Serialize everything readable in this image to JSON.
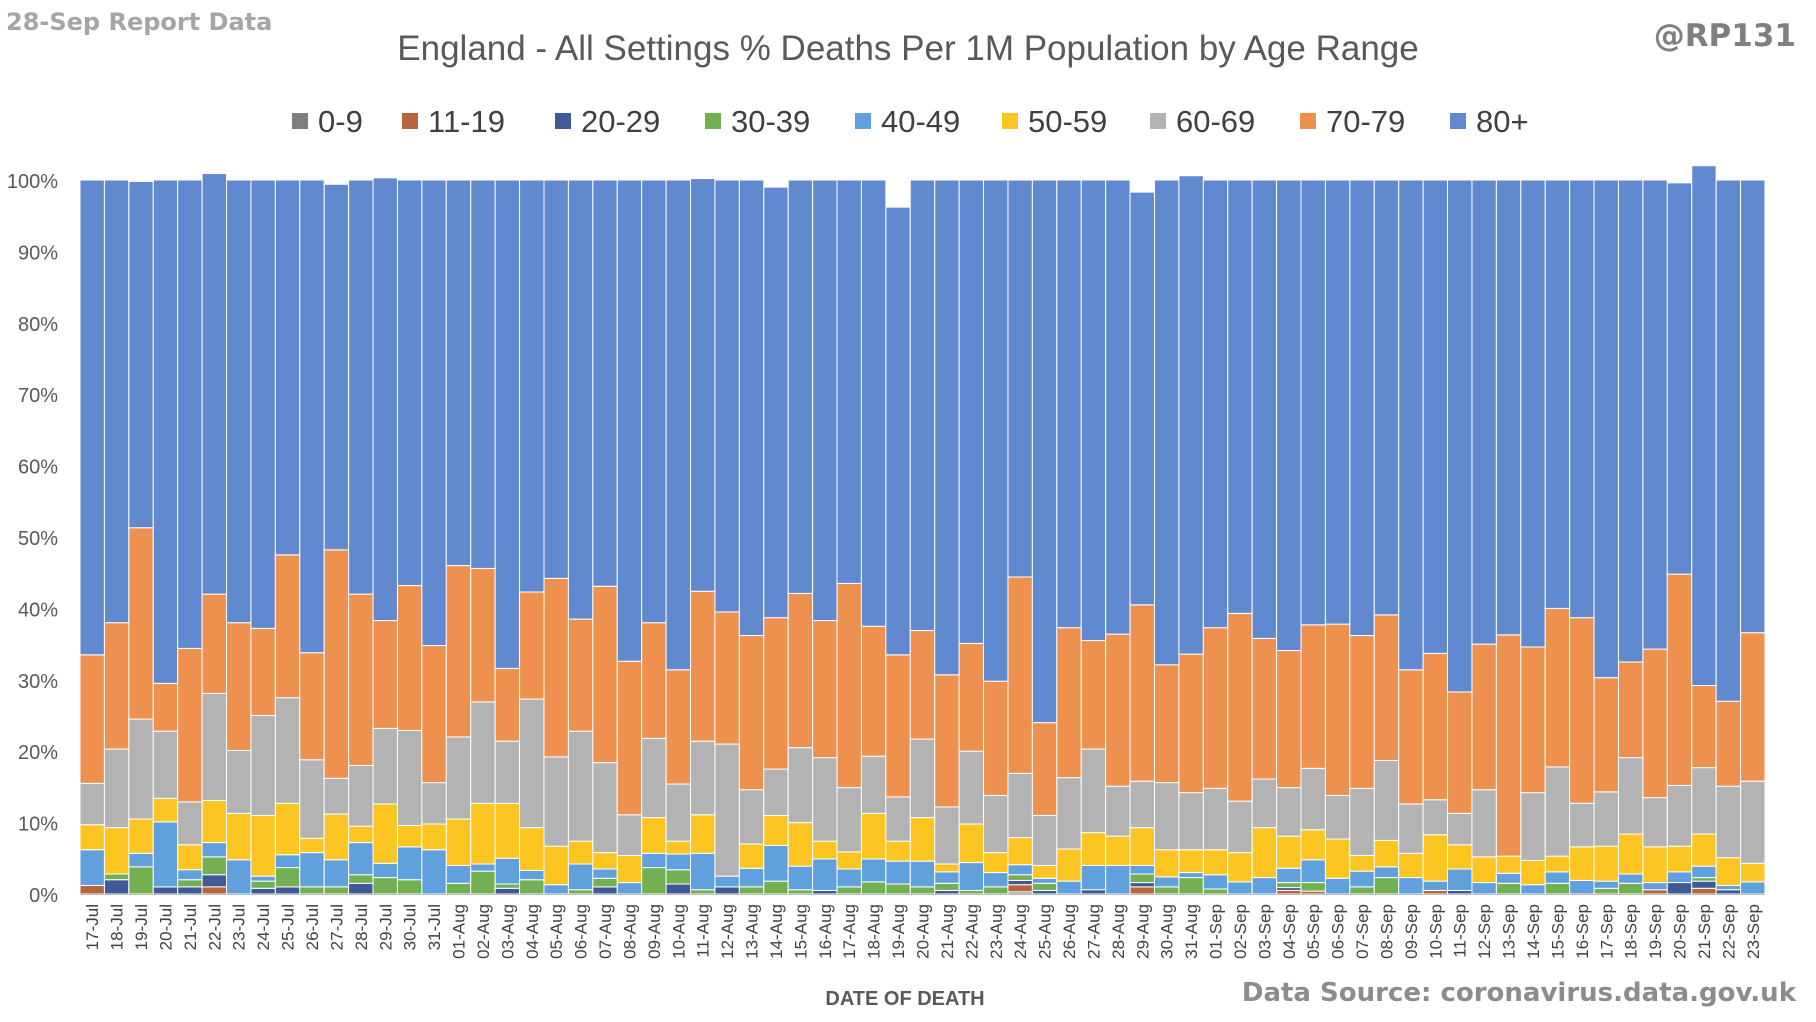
{
  "report_label": "28-Sep Report Data",
  "handle": "@RP131",
  "source": "Data Source: coronavirus.data.gov.uk",
  "colors": {
    "0-9": "#7f7f7f",
    "11-19": "#b5663a",
    "20-29": "#3f5a96",
    "30-39": "#73b054",
    "40-49": "#5fa0dd",
    "50-59": "#fdc521",
    "60-69": "#b3b3b3",
    "70-79": "#ee914f",
    "80+": "#6189d0"
  },
  "chart_data": {
    "type": "bar",
    "stacked": true,
    "title": "England - All Settings % Deaths Per 1M Population by Age Range",
    "xlabel": "DATE OF DEATH",
    "ylabel": "",
    "ylim": [
      0,
      100
    ],
    "yticks": [
      "0%",
      "10%",
      "20%",
      "30%",
      "40%",
      "50%",
      "60%",
      "70%",
      "80%",
      "90%",
      "100%"
    ],
    "legend_position": "top",
    "grid": false,
    "categories": [
      "17-Jul",
      "18-Jul",
      "19-Jul",
      "20-Jul",
      "21-Jul",
      "22-Jul",
      "23-Jul",
      "24-Jul",
      "25-Jul",
      "26-Jul",
      "27-Jul",
      "28-Jul",
      "29-Jul",
      "30-Jul",
      "31-Jul",
      "01-Aug",
      "02-Aug",
      "03-Aug",
      "04-Aug",
      "05-Aug",
      "06-Aug",
      "07-Aug",
      "08-Aug",
      "09-Aug",
      "10-Aug",
      "11-Aug",
      "12-Aug",
      "13-Aug",
      "14-Aug",
      "15-Aug",
      "16-Aug",
      "17-Aug",
      "18-Aug",
      "19-Aug",
      "20-Aug",
      "21-Aug",
      "22-Aug",
      "23-Aug",
      "24-Aug",
      "25-Aug",
      "26-Aug",
      "27-Aug",
      "28-Aug",
      "29-Aug",
      "30-Aug",
      "31-Aug",
      "01-Sep",
      "02-Sep",
      "03-Sep",
      "04-Sep",
      "05-Sep",
      "06-Sep",
      "07-Sep",
      "08-Sep",
      "09-Sep",
      "10-Sep",
      "11-Sep",
      "12-Sep",
      "13-Sep",
      "14-Sep",
      "15-Sep",
      "16-Sep",
      "17-Sep",
      "18-Sep",
      "19-Sep",
      "20-Sep",
      "21-Sep",
      "22-Sep",
      "23-Sep"
    ],
    "series": [
      {
        "name": "0-9",
        "values": [
          0,
          0,
          0,
          0,
          0,
          0,
          0,
          0,
          0,
          0,
          0,
          0,
          0,
          0,
          0,
          0,
          0,
          0,
          0,
          0,
          0,
          0,
          0,
          0,
          0,
          0,
          0,
          0,
          0,
          0,
          0,
          0,
          0,
          0,
          0,
          0,
          0,
          0,
          0.3,
          0,
          0,
          0,
          0,
          0,
          0,
          0,
          0,
          0,
          0,
          0,
          0,
          0,
          0,
          0,
          0,
          0,
          0,
          0,
          0,
          0,
          0,
          0,
          0,
          0,
          0,
          0,
          0,
          0,
          0
        ]
      },
      {
        "name": "11-19",
        "values": [
          1.2,
          0,
          0,
          0,
          0,
          1,
          0,
          0,
          0,
          0,
          0,
          0,
          0,
          0,
          0,
          0,
          0,
          0,
          0,
          0,
          0,
          0,
          0,
          0,
          0,
          0,
          0,
          0,
          0,
          0,
          0,
          0,
          0,
          0,
          0,
          0,
          0,
          0,
          1,
          0,
          0,
          0,
          0,
          1,
          0,
          0,
          0,
          0,
          0,
          0.5,
          0.4,
          0,
          0,
          0,
          0,
          0.5,
          0,
          0,
          0,
          0,
          0,
          0,
          0,
          0,
          0.6,
          0,
          0.8,
          0,
          0
        ]
      },
      {
        "name": "20-29",
        "values": [
          0,
          2,
          0,
          1,
          1,
          1.7,
          0,
          0.8,
          1,
          0,
          0,
          1.5,
          0,
          0,
          0,
          0,
          0,
          0.8,
          0,
          0,
          0,
          1,
          0,
          0,
          1.4,
          0,
          1,
          0,
          0,
          0,
          0.5,
          0,
          0,
          0,
          0,
          0.5,
          0,
          0,
          0.6,
          0.5,
          0,
          0.6,
          0,
          0.6,
          0,
          0,
          0,
          0,
          0,
          0.4,
          0,
          0,
          0,
          0,
          0,
          0,
          0.5,
          0,
          0,
          0,
          0,
          0,
          0,
          0,
          0,
          1.6,
          1,
          0.6,
          0
        ]
      },
      {
        "name": "30-39",
        "values": [
          0,
          0.8,
          3.8,
          0,
          1,
          2.5,
          0,
          1,
          2.7,
          1,
          1,
          1.2,
          2.3,
          2,
          0,
          1.5,
          3.2,
          0.6,
          2,
          0,
          0.6,
          1.2,
          0,
          3.7,
          2,
          0.6,
          0,
          1,
          1.8,
          0.6,
          0,
          1,
          1.7,
          1.4,
          1,
          1,
          0.5,
          1,
          0.8,
          1,
          0,
          0,
          0,
          1.2,
          1,
          2.3,
          0.7,
          0,
          0,
          0.7,
          1.2,
          0,
          1,
          2.3,
          0,
          0,
          0,
          0,
          1.5,
          0,
          1.5,
          0,
          0.8,
          1.5,
          0,
          0,
          0.5,
          0,
          0
        ]
      },
      {
        "name": "40-49",
        "values": [
          5,
          0,
          1.9,
          9.1,
          1.4,
          2,
          4.8,
          0.7,
          1.8,
          4.8,
          3.8,
          4.5,
          2,
          4.6,
          6.2,
          2.5,
          1,
          3.6,
          1.3,
          1.3,
          3.6,
          1.3,
          1.6,
          2,
          2.2,
          5.1,
          1.5,
          2.6,
          5,
          3.3,
          4.4,
          2.5,
          3.2,
          3.2,
          3.6,
          1.6,
          3.9,
          2,
          1.4,
          0.7,
          1.8,
          3.4,
          4,
          1.2,
          1.4,
          0.7,
          2,
          1.7,
          2.3,
          2,
          3.2,
          2.2,
          2.2,
          1.5,
          2.3,
          1.3,
          3,
          1.6,
          1.4,
          1.3,
          1.6,
          1.9,
          1,
          1.3,
          1,
          1.5,
          1.6,
          0.6,
          1.7
        ]
      },
      {
        "name": "50-59",
        "values": [
          3.5,
          6.5,
          4.8,
          3.3,
          3.5,
          5.9,
          6.5,
          8.5,
          7.2,
          2,
          6.4,
          2.3,
          8.3,
          3,
          3.6,
          6.5,
          8.5,
          7.7,
          6,
          5.4,
          3.2,
          2.3,
          3.8,
          5,
          1.8,
          5.4,
          0,
          3.4,
          4.2,
          6.1,
          2.5,
          2.4,
          6.4,
          2.8,
          6.1,
          1.1,
          5.4,
          2.8,
          3.8,
          1.8,
          4.5,
          4.6,
          4.1,
          5.3,
          3.8,
          3.2,
          3.5,
          4.1,
          7,
          4.5,
          4.2,
          5.5,
          2.2,
          3.7,
          3.4,
          6.5,
          3.4,
          3.6,
          2.4,
          3.4,
          2.2,
          4.7,
          4.9,
          5.6,
          5,
          3.6,
          4.5,
          3.9,
          2.6
        ]
      },
      {
        "name": "60-69",
        "values": [
          5.8,
          11,
          14,
          9.4,
          6,
          15,
          8.8,
          14,
          14.8,
          11,
          5,
          8.5,
          10.6,
          13.3,
          5.8,
          11.5,
          14.2,
          8.7,
          18,
          12.5,
          15.4,
          12.6,
          5.7,
          11.1,
          8,
          10.3,
          18.5,
          7.6,
          6.5,
          10.5,
          11.7,
          9,
          8,
          6.2,
          11,
          8,
          10.2,
          8,
          9,
          7,
          10,
          11.7,
          7,
          6.5,
          9.4,
          8,
          8.6,
          7.2,
          6.8,
          6.8,
          8.6,
          6.1,
          9.4,
          11.2,
          6.9,
          4.9,
          4.4,
          9.4,
          0,
          9.5,
          12.5,
          6.1,
          7.6,
          10.7,
          6.9,
          8.5,
          9.3,
          10,
          11.5
        ]
      },
      {
        "name": "70-79",
        "values": [
          18,
          17.7,
          26.8,
          6.7,
          21.5,
          13.9,
          17.9,
          12.2,
          20,
          15,
          32,
          24,
          15.1,
          20.3,
          19.2,
          24,
          18.7,
          10.2,
          15,
          25,
          15.7,
          24.7,
          21.5,
          16.2,
          16,
          21,
          18.5,
          21.6,
          21.2,
          21.6,
          19.2,
          28.6,
          18.2,
          19.9,
          15.2,
          18.5,
          15.1,
          16,
          27.5,
          13,
          21,
          15.2,
          21.3,
          24.7,
          16.5,
          19.4,
          22.5,
          26.3,
          19.7,
          19.2,
          20.1,
          24,
          21.4,
          20.4,
          18.8,
          20.5,
          17,
          20.4,
          31,
          20.4,
          22.2,
          26,
          16,
          13.4,
          20.8,
          29.6,
          11.5,
          11.9,
          20.8
        ]
      },
      {
        "name": "80+",
        "values": [
          66.5,
          62,
          48.5,
          70.5,
          65.6,
          58.9,
          62,
          62.8,
          52.5,
          66.2,
          51.2,
          58,
          62,
          56.8,
          65.2,
          54,
          54.4,
          68.4,
          57.7,
          55.8,
          61.5,
          56.9,
          67.4,
          62,
          68.6,
          57.8,
          60.5,
          63.8,
          60.3,
          57.9,
          61.7,
          56.5,
          62.5,
          62.7,
          63.1,
          69.3,
          64.9,
          70.2,
          55.6,
          76,
          62.7,
          64.5,
          63.6,
          57.8,
          67.9,
          67,
          62.7,
          60.7,
          64.2,
          65.9,
          62.3,
          62.2,
          63.8,
          60.9,
          68.6,
          66.3,
          71.7,
          65,
          63.7,
          65.4,
          60,
          61.3,
          69.7,
          67.5,
          65.7,
          54.8,
          72.8,
          73,
          63.4
        ]
      }
    ]
  }
}
